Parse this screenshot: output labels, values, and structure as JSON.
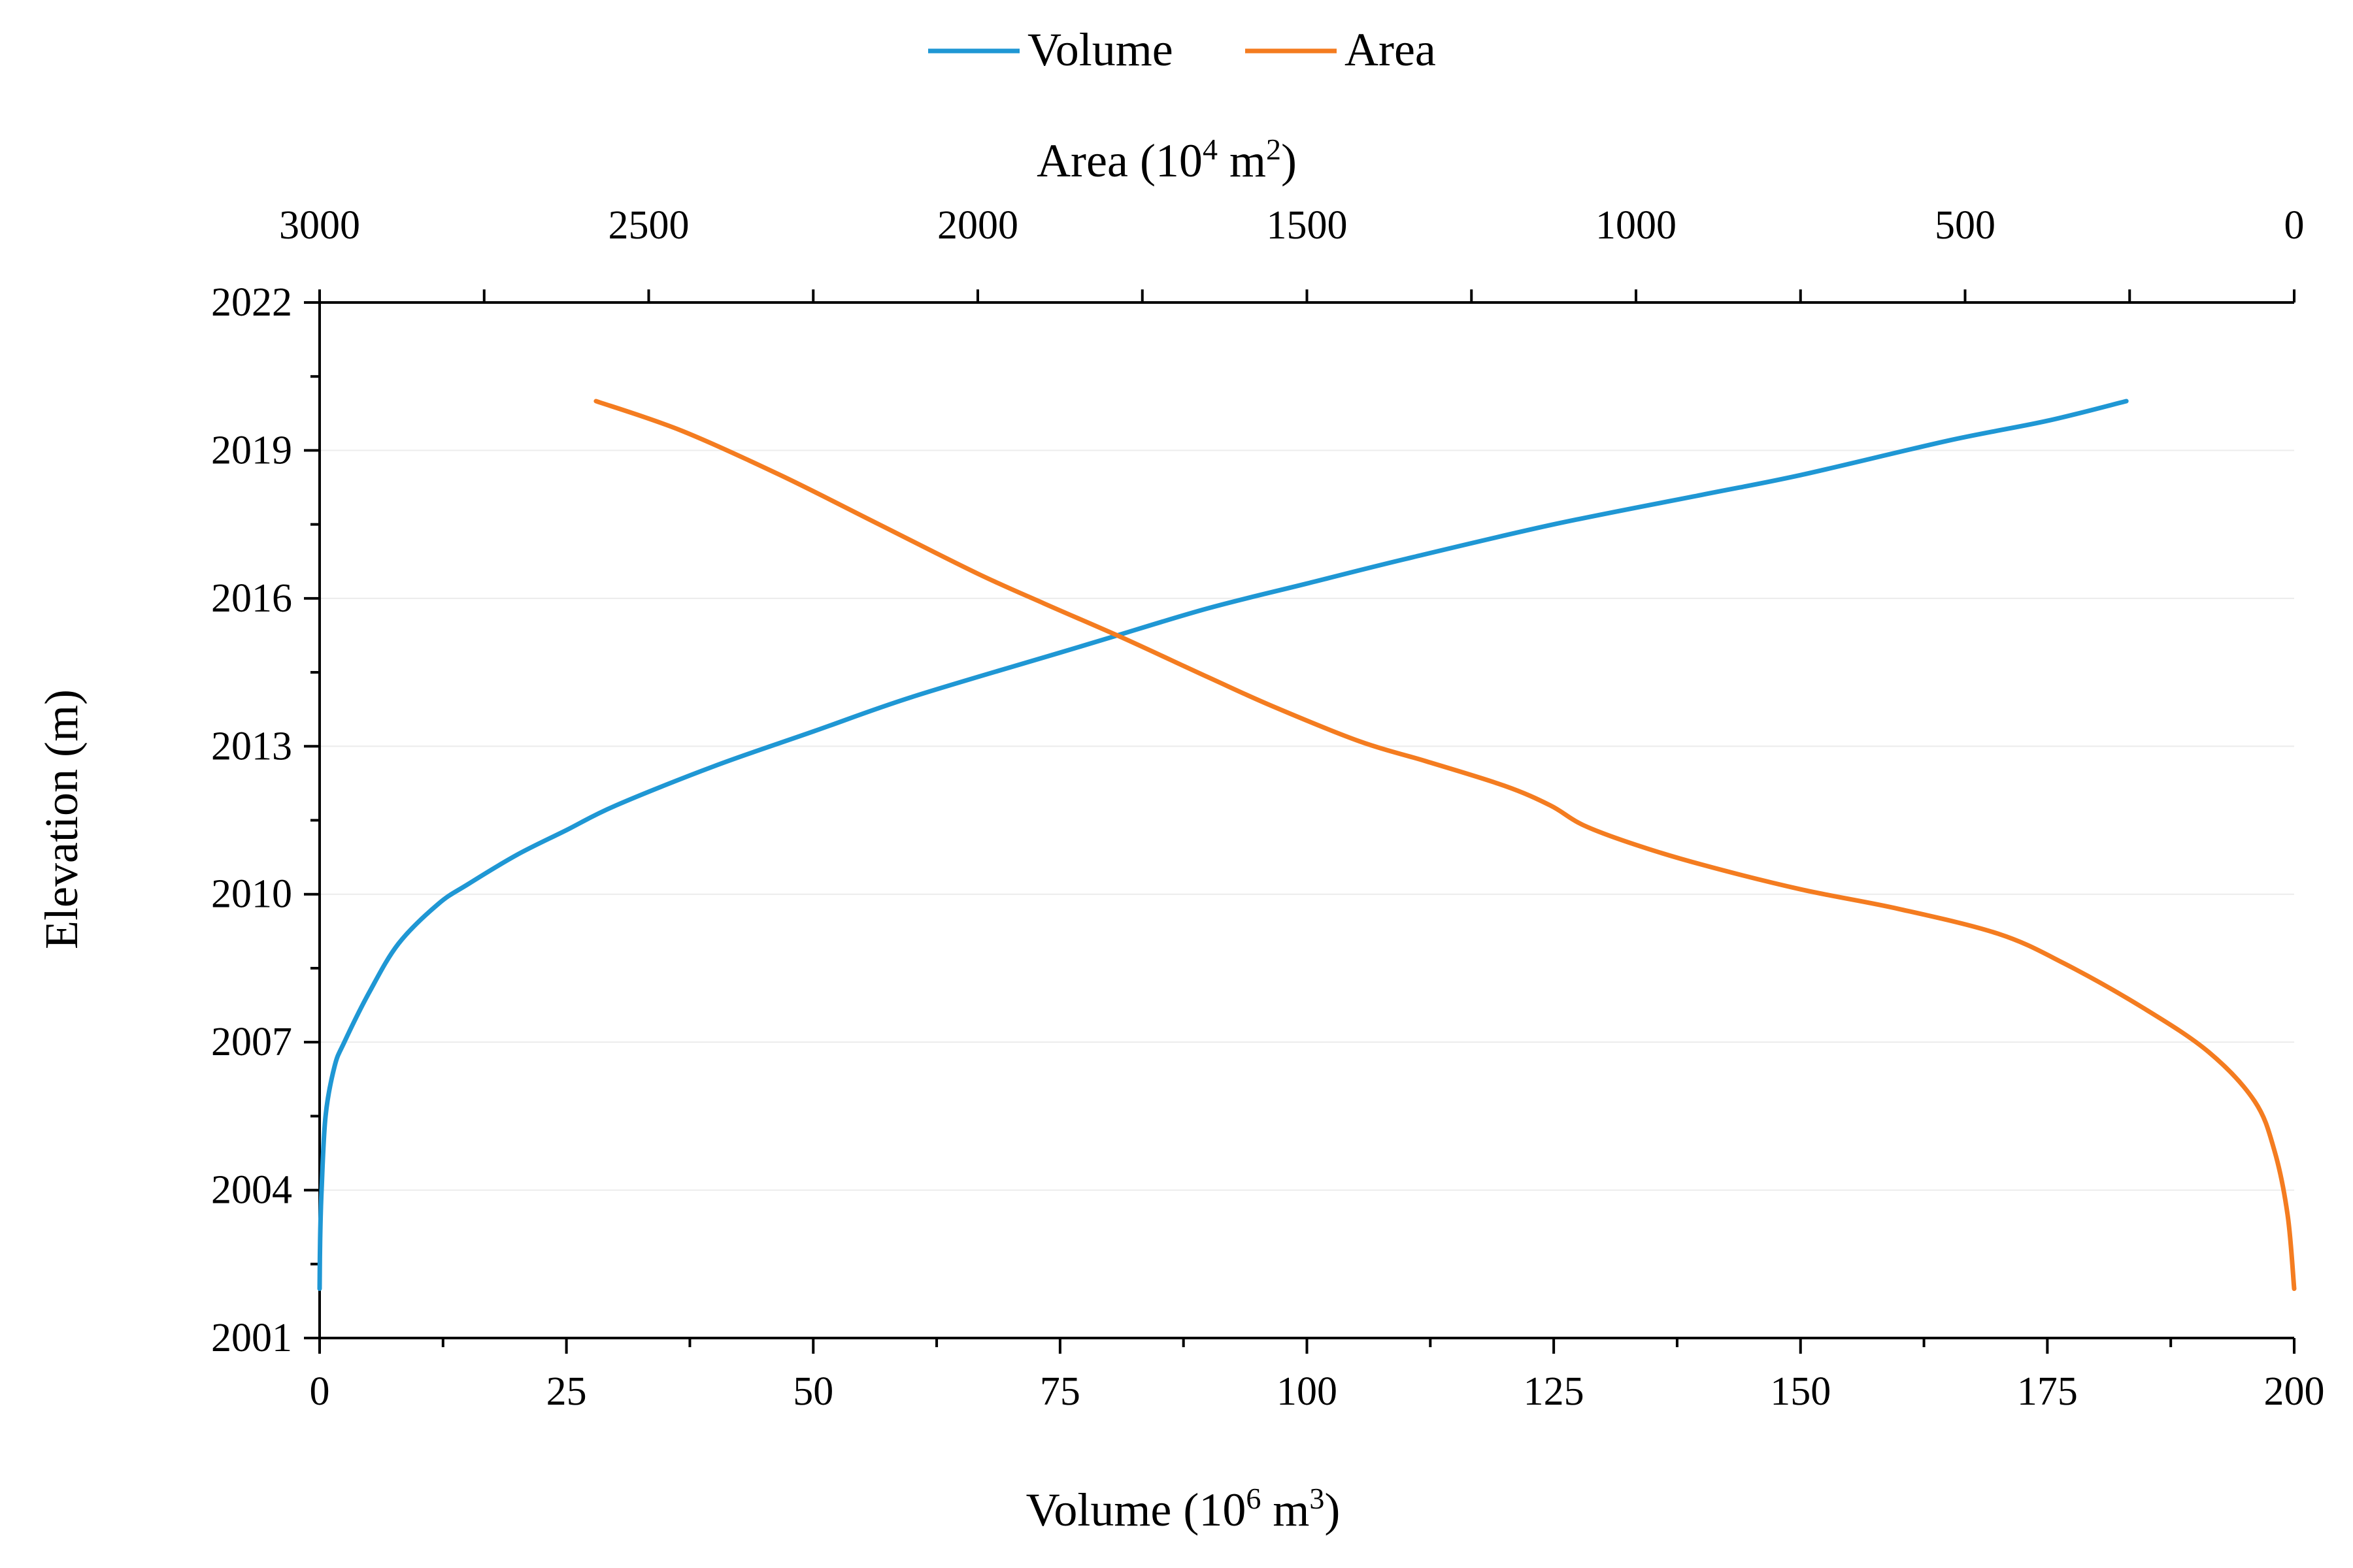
{
  "chart_data": {
    "type": "line",
    "title": "",
    "legend": {
      "position": "top-center",
      "items": [
        {
          "name": "Volume",
          "color": "#1f97d4"
        },
        {
          "name": "Area",
          "color": "#f47c20"
        }
      ]
    },
    "y_axis": {
      "title": "Elevation (m)",
      "min": 2001,
      "max": 2022,
      "major_ticks": [
        "2001",
        "2004",
        "2007",
        "2010",
        "2013",
        "2016",
        "2019",
        "2022"
      ],
      "minor_step": 1.5,
      "gridlines": [
        2004,
        2007,
        2010,
        2013,
        2016,
        2019
      ]
    },
    "x_axis_bottom": {
      "title_main": "Volume (10",
      "title_sup": "6",
      "title_mid": " m",
      "title_sup2": "3",
      "title_end": ")",
      "min": 0,
      "max": 200,
      "major_ticks": [
        "0",
        "25",
        "50",
        "75",
        "100",
        "125",
        "150",
        "175",
        "200"
      ],
      "minor_step": 12.5
    },
    "x_axis_top": {
      "title_main": "Area (10",
      "title_sup": "4",
      "title_mid": " m",
      "title_sup2": "2",
      "title_end": ")",
      "min": 0,
      "max": 3000,
      "reversed": true,
      "major_ticks": [
        "3000",
        "2500",
        "2000",
        "1500",
        "1000",
        "500",
        "0"
      ],
      "minor_step": 250
    },
    "series": [
      {
        "name": "Volume",
        "axis": "bottom",
        "color": "#1f97d4",
        "points": [
          {
            "x": 0,
            "y": 2002
          },
          {
            "x": 0.05,
            "y": 2003
          },
          {
            "x": 0.2,
            "y": 2004
          },
          {
            "x": 0.6,
            "y": 2005.5
          },
          {
            "x": 1.5,
            "y": 2006.5
          },
          {
            "x": 2.5,
            "y": 2007
          },
          {
            "x": 5,
            "y": 2008
          },
          {
            "x": 8,
            "y": 2009
          },
          {
            "x": 12,
            "y": 2009.8
          },
          {
            "x": 15,
            "y": 2010.2
          },
          {
            "x": 20,
            "y": 2010.8
          },
          {
            "x": 25,
            "y": 2011.3
          },
          {
            "x": 30,
            "y": 2011.8
          },
          {
            "x": 40,
            "y": 2012.6
          },
          {
            "x": 50,
            "y": 2013.3
          },
          {
            "x": 60,
            "y": 2014
          },
          {
            "x": 75,
            "y": 2014.9
          },
          {
            "x": 80,
            "y": 2015.2
          },
          {
            "x": 90,
            "y": 2015.8
          },
          {
            "x": 100,
            "y": 2016.3
          },
          {
            "x": 110,
            "y": 2016.8
          },
          {
            "x": 125,
            "y": 2017.5
          },
          {
            "x": 140,
            "y": 2018.1
          },
          {
            "x": 150,
            "y": 2018.5
          },
          {
            "x": 165,
            "y": 2019.2
          },
          {
            "x": 175,
            "y": 2019.6
          },
          {
            "x": 183,
            "y": 2020
          }
        ]
      },
      {
        "name": "Area",
        "axis": "top",
        "color": "#f47c20",
        "points": [
          {
            "x": 0,
            "y": 2002
          },
          {
            "x": 10,
            "y": 2003.5
          },
          {
            "x": 30,
            "y": 2004.8
          },
          {
            "x": 60,
            "y": 2005.8
          },
          {
            "x": 130,
            "y": 2006.8
          },
          {
            "x": 230,
            "y": 2007.7
          },
          {
            "x": 350,
            "y": 2008.6
          },
          {
            "x": 450,
            "y": 2009.2
          },
          {
            "x": 600,
            "y": 2009.7
          },
          {
            "x": 750,
            "y": 2010.1
          },
          {
            "x": 900,
            "y": 2010.6
          },
          {
            "x": 1000,
            "y": 2011
          },
          {
            "x": 1080,
            "y": 2011.4
          },
          {
            "x": 1130,
            "y": 2011.8
          },
          {
            "x": 1200,
            "y": 2012.2
          },
          {
            "x": 1320,
            "y": 2012.7
          },
          {
            "x": 1420,
            "y": 2013.1
          },
          {
            "x": 1550,
            "y": 2013.8
          },
          {
            "x": 1650,
            "y": 2014.4
          },
          {
            "x": 1780,
            "y": 2015.2
          },
          {
            "x": 1900,
            "y": 2015.9
          },
          {
            "x": 2000,
            "y": 2016.5
          },
          {
            "x": 2150,
            "y": 2017.5
          },
          {
            "x": 2300,
            "y": 2018.5
          },
          {
            "x": 2450,
            "y": 2019.4
          },
          {
            "x": 2580,
            "y": 2020
          }
        ]
      }
    ]
  }
}
